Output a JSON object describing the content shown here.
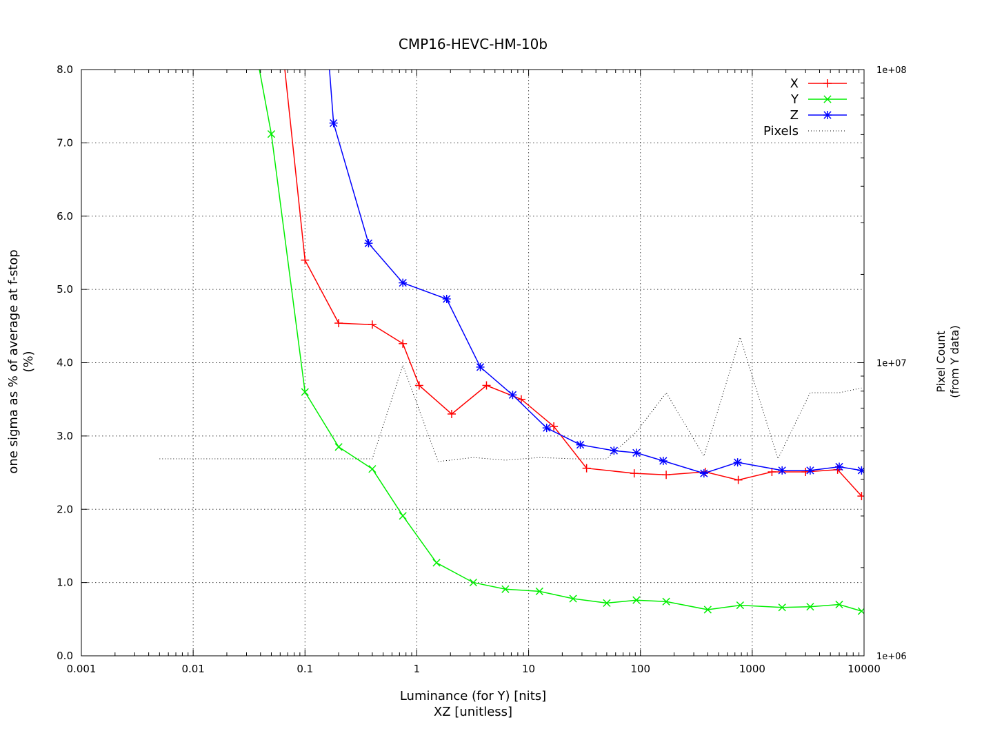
{
  "chart_data": {
    "type": "line",
    "title": "CMP16-HEVC-HM-10b",
    "xlabel": [
      "Luminance (for Y) [nits]",
      "XZ [unitless]"
    ],
    "ylabel": [
      "one sigma as % of average at f-stop",
      "(%)"
    ],
    "y2label": [
      "Pixel Count",
      "(from Y data)"
    ],
    "xscale": "log",
    "xlim": [
      0.001,
      10000
    ],
    "ylim": [
      0,
      8
    ],
    "y2scale": "log",
    "y2lim": [
      1000000,
      100000000
    ],
    "grid": true,
    "legend_position": "top-right",
    "x_ticks": [
      "0.001",
      "0.01",
      "0.1",
      "1",
      "10",
      "100",
      "1000",
      "10000"
    ],
    "y_ticks": [
      "0.0",
      "1.0",
      "2.0",
      "3.0",
      "4.0",
      "5.0",
      "6.0",
      "7.0",
      "8.0"
    ],
    "y2_ticks": [
      "1e+06",
      "1e+07",
      "1e+08"
    ],
    "series": [
      {
        "name": "X",
        "color": "#ff0000",
        "marker": "plus",
        "axis": "y",
        "points": [
          [
            0.06,
            8.6
          ],
          [
            0.1,
            5.4
          ],
          [
            0.2,
            4.54
          ],
          [
            0.4,
            4.52
          ],
          [
            0.75,
            4.26
          ],
          [
            1.05,
            3.69
          ],
          [
            2.05,
            3.3
          ],
          [
            4.2,
            3.69
          ],
          [
            8.6,
            3.5
          ],
          [
            16.8,
            3.13
          ],
          [
            33,
            2.56
          ],
          [
            88,
            2.49
          ],
          [
            170,
            2.47
          ],
          [
            380,
            2.51
          ],
          [
            750,
            2.4
          ],
          [
            1500,
            2.51
          ],
          [
            3000,
            2.51
          ],
          [
            5800,
            2.54
          ],
          [
            9500,
            2.18
          ]
        ]
      },
      {
        "name": "Y",
        "color": "#00ee00",
        "marker": "x",
        "axis": "y",
        "points": [
          [
            0.038,
            8.1
          ],
          [
            0.05,
            7.12
          ],
          [
            0.1,
            3.6
          ],
          [
            0.2,
            2.85
          ],
          [
            0.4,
            2.55
          ],
          [
            0.75,
            1.91
          ],
          [
            1.5,
            1.27
          ],
          [
            3.2,
            1.0
          ],
          [
            6.2,
            0.91
          ],
          [
            12.5,
            0.88
          ],
          [
            25,
            0.78
          ],
          [
            50,
            0.72
          ],
          [
            92,
            0.76
          ],
          [
            170,
            0.74
          ],
          [
            400,
            0.63
          ],
          [
            780,
            0.69
          ],
          [
            1850,
            0.66
          ],
          [
            3300,
            0.67
          ],
          [
            6000,
            0.7
          ],
          [
            9500,
            0.61
          ]
        ]
      },
      {
        "name": "Z",
        "color": "#0000ff",
        "marker": "star",
        "axis": "y",
        "points": [
          [
            0.16,
            8.3
          ],
          [
            0.18,
            7.27
          ],
          [
            0.37,
            5.63
          ],
          [
            0.75,
            5.09
          ],
          [
            1.85,
            4.87
          ],
          [
            3.7,
            3.94
          ],
          [
            7.2,
            3.56
          ],
          [
            14.5,
            3.11
          ],
          [
            29,
            2.88
          ],
          [
            58,
            2.8
          ],
          [
            92,
            2.77
          ],
          [
            160,
            2.66
          ],
          [
            370,
            2.49
          ],
          [
            740,
            2.64
          ],
          [
            1850,
            2.53
          ],
          [
            3300,
            2.53
          ],
          [
            6000,
            2.58
          ],
          [
            9500,
            2.53
          ]
        ]
      },
      {
        "name": "Pixels",
        "color": "#000000",
        "marker": "none",
        "dash": "dotted",
        "axis": "y2",
        "points": [
          [
            0.005,
            4700000
          ],
          [
            0.4,
            4700000
          ],
          [
            0.75,
            9800000
          ],
          [
            1.55,
            4600000
          ],
          [
            3.2,
            4750000
          ],
          [
            6.2,
            4650000
          ],
          [
            12.5,
            4750000
          ],
          [
            25,
            4700000
          ],
          [
            50,
            4700000
          ],
          [
            92,
            5800000
          ],
          [
            170,
            7900000
          ],
          [
            370,
            4800000
          ],
          [
            780,
            12200000
          ],
          [
            1700,
            4700000
          ],
          [
            3300,
            7900000
          ],
          [
            6000,
            7900000
          ],
          [
            9500,
            8200000
          ]
        ]
      }
    ]
  }
}
